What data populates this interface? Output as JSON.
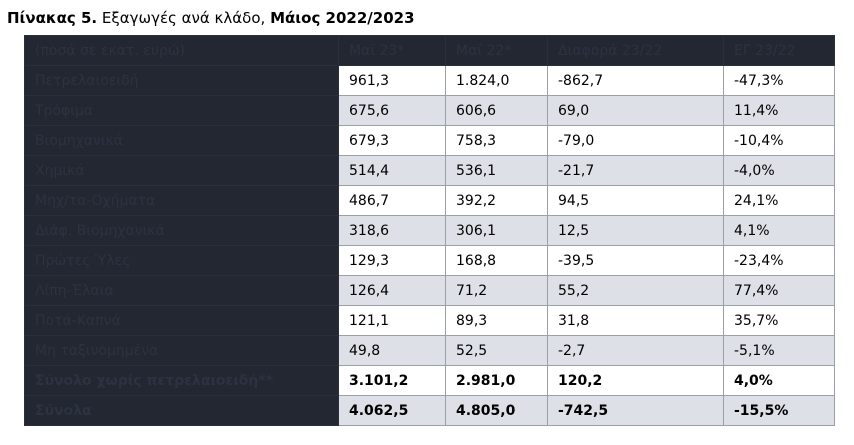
{
  "title": {
    "prefix": "Πίνακας 5.",
    "middle": " Εξαγωγές ανά κλάδο, ",
    "suffix": "Μάιος 2022/2023"
  },
  "table": {
    "header": [
      "(ποσά σε εκατ. ευρώ)",
      "Μαϊ 23*",
      "Μαϊ 22*",
      "Διαφορά 23/22",
      "ΕΓ 23/22"
    ],
    "rows": [
      {
        "label": "Πετρελαιοειδή",
        "values": [
          "961,3",
          "1.824,0",
          "-862,7",
          "-47,3%"
        ],
        "bold": false
      },
      {
        "label": "Τρόφιμα",
        "values": [
          "675,6",
          "606,6",
          "69,0",
          "11,4%"
        ],
        "bold": false
      },
      {
        "label": "Βιομηχανικά",
        "values": [
          "679,3",
          "758,3",
          "-79,0",
          "-10,4%"
        ],
        "bold": false
      },
      {
        "label": "Χημικά",
        "values": [
          "514,4",
          "536,1",
          "-21,7",
          "-4,0%"
        ],
        "bold": false
      },
      {
        "label": "Μηχ/τα-Οχήματα",
        "values": [
          "486,7",
          "392,2",
          "94,5",
          "24,1%"
        ],
        "bold": false
      },
      {
        "label": "Διάφ. Βιομηχανικά",
        "values": [
          "318,6",
          "306,1",
          "12,5",
          "4,1%"
        ],
        "bold": false
      },
      {
        "label": "Πρώτες Ύλες",
        "values": [
          "129,3",
          "168,8",
          "-39,5",
          "-23,4%"
        ],
        "bold": false
      },
      {
        "label": "Λίπη-Έλαια",
        "values": [
          "126,4",
          "71,2",
          "55,2",
          "77,4%"
        ],
        "bold": false
      },
      {
        "label": "Ποτά-Καπνά",
        "values": [
          "121,1",
          "89,3",
          "31,8",
          "35,7%"
        ],
        "bold": false
      },
      {
        "label": "Μη ταξινομημένα",
        "values": [
          "49,8",
          "52,5",
          "-2,7",
          "-5,1%"
        ],
        "bold": false
      },
      {
        "label": "Σύνολο χωρίς πετρελαιοειδή**",
        "values": [
          "3.101,2",
          "2.981,0",
          "120,2",
          "4,0%"
        ],
        "bold": true
      },
      {
        "label": "Σύνολα",
        "values": [
          "4.062,5",
          "4.805,0",
          "-742,5",
          "-15,5%"
        ],
        "bold": true
      }
    ]
  }
}
